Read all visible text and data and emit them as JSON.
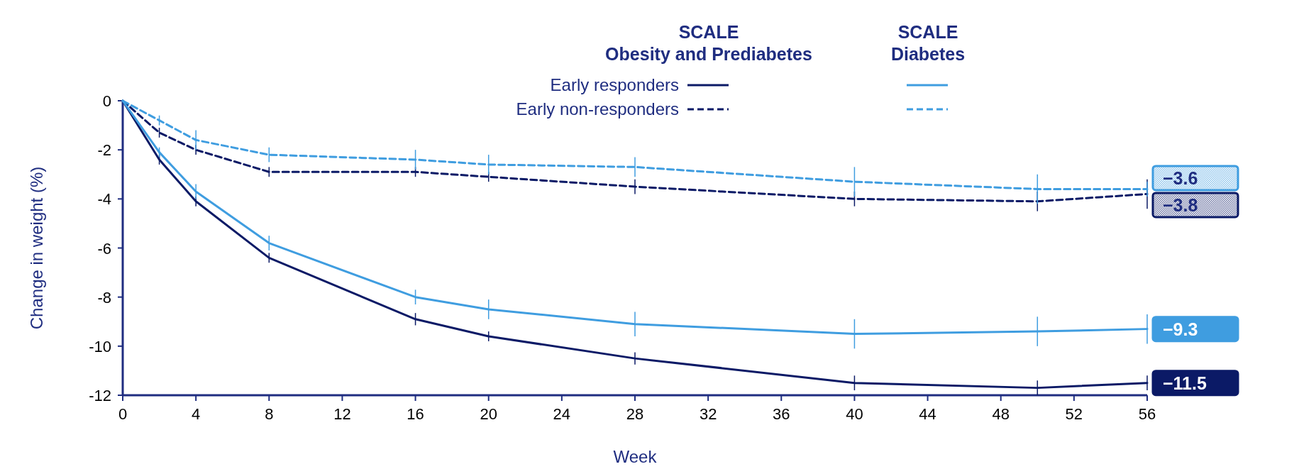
{
  "chart_data": {
    "type": "line",
    "x": [
      0,
      2,
      4,
      8,
      16,
      20,
      28,
      40,
      50,
      56
    ],
    "xlabel": "Week",
    "ylabel": "Change in weight (%)",
    "xlim": [
      0,
      56
    ],
    "xticks": [
      0,
      4,
      8,
      12,
      16,
      20,
      24,
      28,
      32,
      36,
      40,
      44,
      48,
      52,
      56
    ],
    "ylim": [
      -12,
      0
    ],
    "yticks": [
      0,
      -2,
      -4,
      -6,
      -8,
      -10,
      -12
    ],
    "annotations": [
      "SCALE\nObesity and Prediabetes",
      "SCALE\nDiabetes"
    ],
    "legend": "top",
    "grid": false,
    "marker": "none",
    "series": [
      {
        "name": "Early responders",
        "color": "#0b1a66",
        "line_style": "solid",
        "values": [
          0,
          -2.4,
          -4.1,
          -6.4,
          -8.9,
          -9.6,
          -10.5,
          -11.5,
          -11.7,
          -11.5
        ],
        "errors": [
          null,
          0.2,
          0.2,
          0.2,
          0.25,
          0.2,
          0.25,
          0.3,
          0.3,
          0.3
        ],
        "value_labels": [
          null,
          null,
          null,
          null,
          null,
          null,
          null,
          null,
          null,
          "−11.5"
        ]
      },
      {
        "name": "Early non-responders",
        "color": "#0b1a66",
        "line_style": "dashed",
        "values": [
          0,
          -1.3,
          -2.0,
          -2.9,
          -2.9,
          -3.1,
          -3.5,
          -4.0,
          -4.1,
          -3.8
        ],
        "errors": [
          null,
          0.2,
          0.2,
          0.2,
          0.2,
          0.2,
          0.3,
          0.3,
          0.4,
          0.6
        ],
        "value_labels": [
          null,
          null,
          null,
          null,
          null,
          null,
          null,
          null,
          null,
          "−3.8"
        ]
      },
      {
        "color": "#3f9de0",
        "line_style": "solid",
        "values": [
          0,
          -2.1,
          -3.7,
          -5.8,
          -8.0,
          -8.5,
          -9.1,
          -9.5,
          -9.4,
          -9.3
        ],
        "errors": [
          null,
          0.2,
          0.3,
          0.3,
          0.3,
          0.4,
          0.5,
          0.6,
          0.6,
          0.6
        ],
        "value_labels": [
          null,
          null,
          null,
          null,
          null,
          null,
          null,
          null,
          null,
          "−9.3"
        ]
      },
      {
        "color": "#3f9de0",
        "line_style": "dashed",
        "values": [
          0,
          -0.8,
          -1.6,
          -2.2,
          -2.4,
          -2.6,
          -2.7,
          -3.3,
          -3.6,
          -3.6
        ],
        "errors": [
          null,
          0.2,
          0.4,
          0.3,
          0.4,
          0.4,
          0.4,
          0.6,
          0.6,
          0.3
        ],
        "value_labels": [
          null,
          null,
          null,
          null,
          null,
          null,
          null,
          null,
          null,
          "−3.6"
        ]
      }
    ]
  }
}
